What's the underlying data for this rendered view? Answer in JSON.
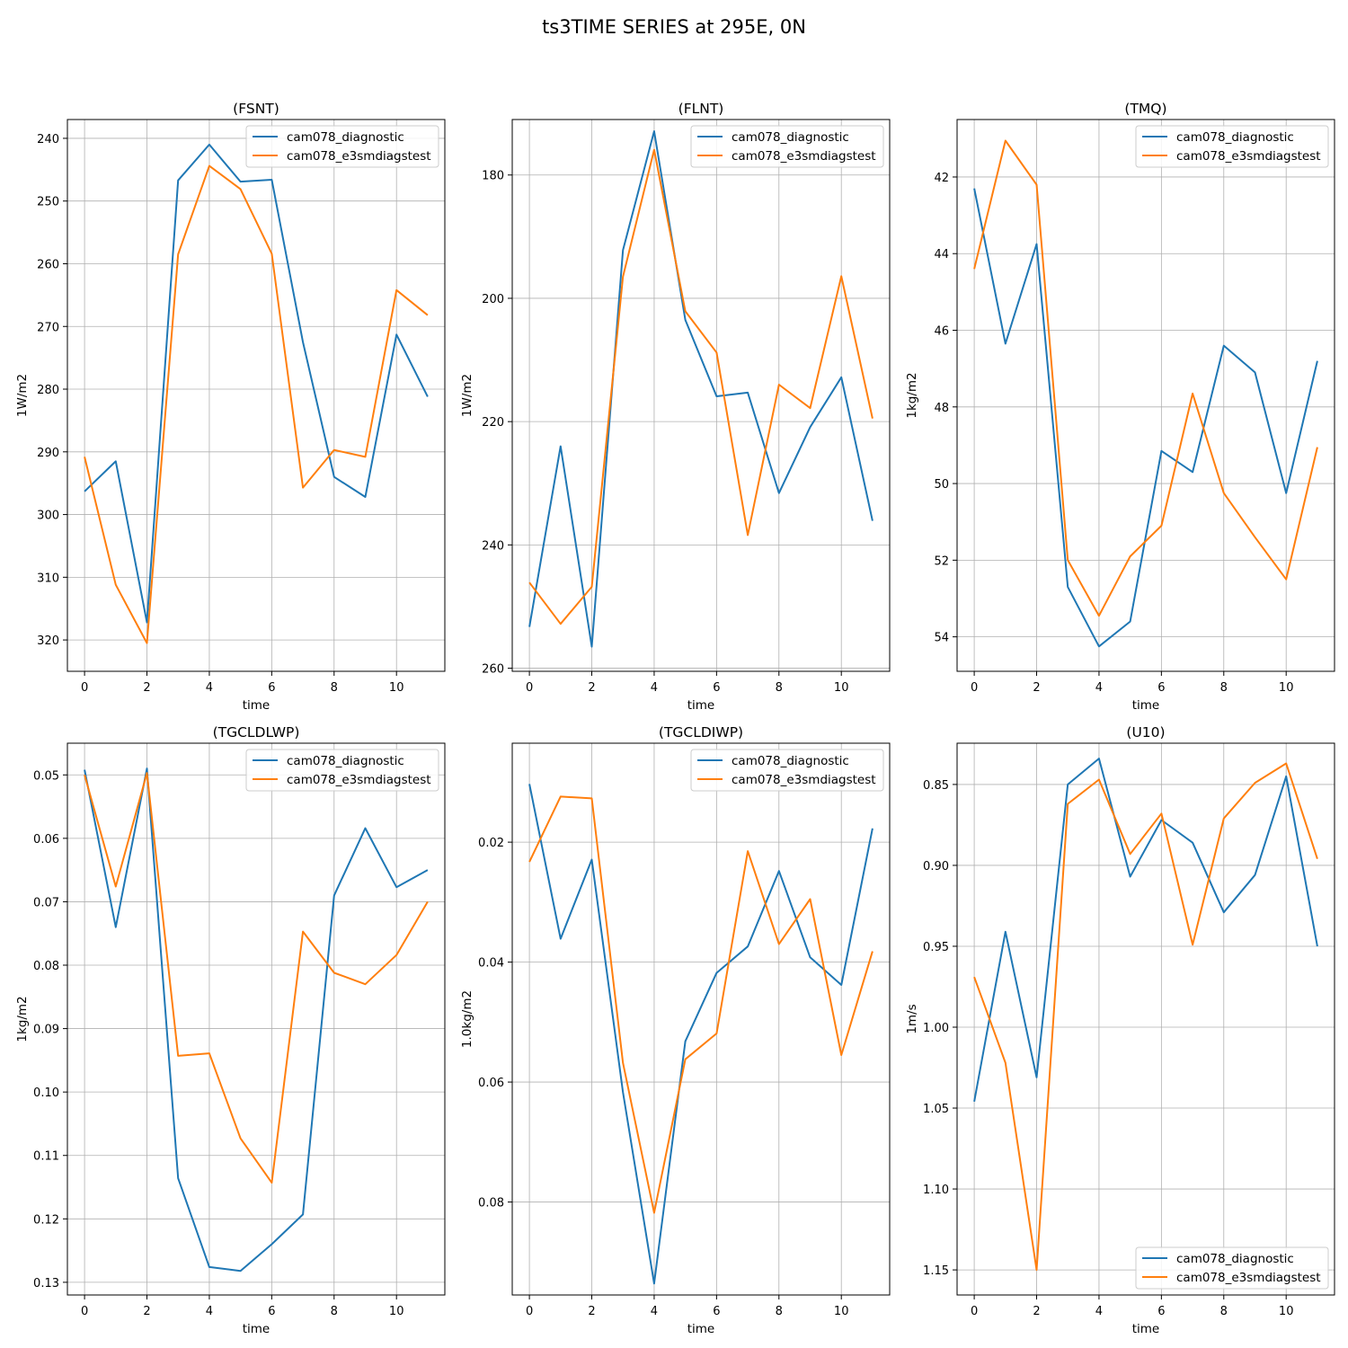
{
  "figure": {
    "suptitle": "ts3TIME SERIES at 295E, 0N",
    "series_colors": [
      "#1f77b4",
      "#ff7f0e"
    ],
    "grid": true
  },
  "chart_data": [
    {
      "type": "line",
      "title": "(FSNT)",
      "xlabel": "time",
      "ylabel": "1W/m2",
      "inverted_y": true,
      "xlim": [
        -0.55,
        11.55
      ],
      "ylim": [
        237,
        325
      ],
      "xticks": [
        0,
        2,
        4,
        6,
        8,
        10
      ],
      "xtick_labels": [
        "0",
        "2",
        "4",
        "6",
        "8",
        "10"
      ],
      "yticks": [
        240,
        250,
        260,
        270,
        280,
        290,
        300,
        310,
        320
      ],
      "ytick_labels": [
        "240",
        "250",
        "260",
        "270",
        "280",
        "290",
        "300",
        "310",
        "320"
      ],
      "legend": "upper right",
      "x": [
        0,
        1,
        2,
        3,
        4,
        5,
        6,
        7,
        8,
        9,
        10,
        11
      ],
      "series": [
        {
          "name": "cam078_diagnostic",
          "values": [
            296.3,
            291.5,
            317.2,
            246.7,
            241.0,
            246.9,
            246.6,
            272.5,
            294.0,
            297.2,
            271.3,
            281.2
          ]
        },
        {
          "name": "cam078_e3smdiagstest",
          "values": [
            290.8,
            311.2,
            320.5,
            258.5,
            244.4,
            248.1,
            258.4,
            295.7,
            289.7,
            290.8,
            264.2,
            268.2
          ]
        }
      ]
    },
    {
      "type": "line",
      "title": "(FLNT)",
      "xlabel": "time",
      "ylabel": "1W/m2",
      "inverted_y": true,
      "xlim": [
        -0.55,
        11.55
      ],
      "ylim": [
        171,
        260.5
      ],
      "xticks": [
        0,
        2,
        4,
        6,
        8,
        10
      ],
      "xtick_labels": [
        "0",
        "2",
        "4",
        "6",
        "8",
        "10"
      ],
      "yticks": [
        180,
        200,
        220,
        240,
        260
      ],
      "ytick_labels": [
        "180",
        "200",
        "220",
        "240",
        "260"
      ],
      "legend": "upper right",
      "x": [
        0,
        1,
        2,
        3,
        4,
        5,
        6,
        7,
        8,
        9,
        10,
        11
      ],
      "series": [
        {
          "name": "cam078_diagnostic",
          "values": [
            253.3,
            224.0,
            256.5,
            192.2,
            172.9,
            203.5,
            215.9,
            215.3,
            231.6,
            220.9,
            212.8,
            236.1
          ]
        },
        {
          "name": "cam078_e3smdiagstest",
          "values": [
            246.1,
            252.8,
            246.8,
            196.5,
            175.9,
            202.1,
            208.8,
            238.4,
            214.0,
            217.8,
            196.4,
            219.5
          ]
        }
      ]
    },
    {
      "type": "line",
      "title": "(TMQ)",
      "xlabel": "time",
      "ylabel": "1kg/m2",
      "inverted_y": true,
      "xlim": [
        -0.55,
        11.55
      ],
      "ylim": [
        40.5,
        54.9
      ],
      "xticks": [
        0,
        2,
        4,
        6,
        8,
        10
      ],
      "xtick_labels": [
        "0",
        "2",
        "4",
        "6",
        "8",
        "10"
      ],
      "yticks": [
        42,
        44,
        46,
        48,
        50,
        52,
        54
      ],
      "ytick_labels": [
        "42",
        "44",
        "46",
        "48",
        "50",
        "52",
        "54"
      ],
      "legend": "upper right",
      "x": [
        0,
        1,
        2,
        3,
        4,
        5,
        6,
        7,
        8,
        9,
        10,
        11
      ],
      "series": [
        {
          "name": "cam078_diagnostic",
          "values": [
            42.3,
            46.35,
            43.75,
            52.7,
            54.25,
            53.6,
            49.15,
            49.7,
            46.4,
            47.1,
            50.25,
            46.8
          ]
        },
        {
          "name": "cam078_e3smdiagstest",
          "values": [
            44.4,
            41.05,
            42.2,
            52.0,
            53.45,
            51.9,
            51.1,
            47.65,
            50.25,
            51.4,
            52.5,
            49.05
          ]
        }
      ]
    },
    {
      "type": "line",
      "title": "(TGCLDLWP)",
      "xlabel": "time",
      "ylabel": "1kg/m2",
      "inverted_y": true,
      "xlim": [
        -0.55,
        11.55
      ],
      "ylim": [
        0.045,
        0.132
      ],
      "xticks": [
        0,
        2,
        4,
        6,
        8,
        10
      ],
      "xtick_labels": [
        "0",
        "2",
        "4",
        "6",
        "8",
        "10"
      ],
      "yticks": [
        0.05,
        0.06,
        0.07,
        0.08,
        0.09,
        0.1,
        0.11,
        0.12,
        0.13
      ],
      "ytick_labels": [
        "0.05",
        "0.06",
        "0.07",
        "0.08",
        "0.09",
        "0.10",
        "0.11",
        "0.12",
        "0.13"
      ],
      "legend": "upper right",
      "x": [
        0,
        1,
        2,
        3,
        4,
        5,
        6,
        7,
        8,
        9,
        10,
        11
      ],
      "series": [
        {
          "name": "cam078_diagnostic",
          "values": [
            0.0492,
            0.074,
            0.049,
            0.1136,
            0.1276,
            0.1282,
            0.124,
            0.1193,
            0.069,
            0.0584,
            0.0677,
            0.065
          ]
        },
        {
          "name": "cam078_e3smdiagstest",
          "values": [
            0.05,
            0.0676,
            0.0497,
            0.0943,
            0.0939,
            0.1073,
            0.1143,
            0.0747,
            0.0812,
            0.083,
            0.0784,
            0.07
          ]
        }
      ]
    },
    {
      "type": "line",
      "title": "(TGCLDIWP)",
      "xlabel": "time",
      "ylabel": "1.0kg/m2",
      "inverted_y": true,
      "xlim": [
        -0.55,
        11.55
      ],
      "ylim": [
        0.0035,
        0.0955
      ],
      "xticks": [
        0,
        2,
        4,
        6,
        8,
        10
      ],
      "xtick_labels": [
        "0",
        "2",
        "4",
        "6",
        "8",
        "10"
      ],
      "yticks": [
        0.02,
        0.04,
        0.06,
        0.08
      ],
      "ytick_labels": [
        "0.02",
        "0.04",
        "0.06",
        "0.08"
      ],
      "legend": "upper right",
      "x": [
        0,
        1,
        2,
        3,
        4,
        5,
        6,
        7,
        8,
        9,
        10,
        11
      ],
      "series": [
        {
          "name": "cam078_diagnostic",
          "values": [
            0.0103,
            0.0361,
            0.0229,
            0.0617,
            0.0936,
            0.0532,
            0.0418,
            0.0374,
            0.0248,
            0.0392,
            0.0438,
            0.0177
          ]
        },
        {
          "name": "cam078_e3smdiagstest",
          "values": [
            0.0233,
            0.0124,
            0.0127,
            0.0568,
            0.0818,
            0.0562,
            0.0519,
            0.0215,
            0.037,
            0.0295,
            0.0555,
            0.0382
          ]
        }
      ]
    },
    {
      "type": "line",
      "title": "(U10)",
      "xlabel": "time",
      "ylabel": "1m/s",
      "inverted_y": true,
      "xlim": [
        -0.55,
        11.55
      ],
      "ylim": [
        0.8245,
        1.1655
      ],
      "xticks": [
        0,
        2,
        4,
        6,
        8,
        10
      ],
      "xtick_labels": [
        "0",
        "2",
        "4",
        "6",
        "8",
        "10"
      ],
      "yticks": [
        0.85,
        0.9,
        0.95,
        1.0,
        1.05,
        1.1,
        1.15
      ],
      "ytick_labels": [
        "0.85",
        "0.90",
        "0.95",
        "1.00",
        "1.05",
        "1.10",
        "1.15"
      ],
      "legend": "lower right",
      "x": [
        0,
        1,
        2,
        3,
        4,
        5,
        6,
        7,
        8,
        9,
        10,
        11
      ],
      "series": [
        {
          "name": "cam078_diagnostic",
          "values": [
            1.046,
            0.941,
            1.031,
            0.85,
            0.834,
            0.907,
            0.872,
            0.886,
            0.929,
            0.906,
            0.845,
            0.95
          ]
        },
        {
          "name": "cam078_e3smdiagstest",
          "values": [
            0.969,
            1.022,
            1.15,
            0.862,
            0.847,
            0.893,
            0.868,
            0.949,
            0.871,
            0.849,
            0.837,
            0.896
          ]
        }
      ]
    }
  ]
}
